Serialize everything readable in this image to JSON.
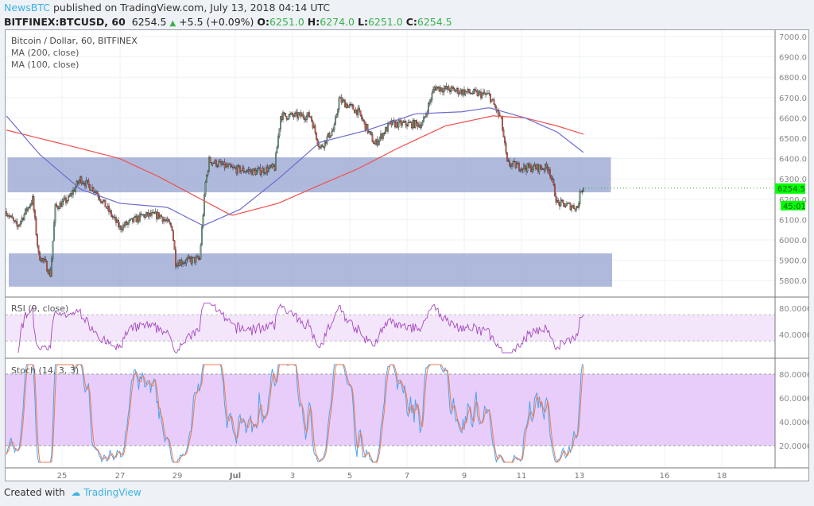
{
  "header": {
    "publisher": "NewsBTC",
    "published_text": "published on TradingView.com, July 13, 2018 04:14 UTC",
    "symbol": "BITFINEX:BTCUSD, 60",
    "last": "6254.5",
    "change": "+5.5 (+0.09%)",
    "o_label": "O:",
    "o": "6251.0",
    "h_label": "H:",
    "h": "6274.0",
    "l_label": "L:",
    "l": "6251.0",
    "c_label": "C:",
    "c": "6254.5"
  },
  "footer": {
    "created_with": "Created with",
    "brand": "TradingView"
  },
  "colors": {
    "up": "#6ba583",
    "down": "#d75442",
    "ma200": "#f0504a",
    "ma100": "#6c6ccf",
    "zone": "#8494c9",
    "rsi": "#a646c0",
    "stoch_k": "#4aa3f0",
    "stoch_d": "#f07a4a",
    "badge": "#00ff00"
  },
  "chart_data": [
    {
      "type": "candlestick",
      "title": "Bitcoin / Dollar, 60, BITFINEX",
      "interval": "60",
      "ylim": [
        5750,
        7020
      ],
      "yticks": [
        "7000.0",
        "6900.0",
        "6800.0",
        "6700.0",
        "6600.0",
        "6500.0",
        "6400.0",
        "6300.0",
        "6200.0",
        "6100.0",
        "6000.0",
        "5900.0",
        "5800.0"
      ],
      "xticks": [
        "25",
        "27",
        "29",
        "Jul",
        "3",
        "5",
        "7",
        "9",
        "11",
        "13",
        "16",
        "18"
      ],
      "last_price_label": "6254.5",
      "countdown_label": "45:01",
      "price_path": [
        [
          "2018-06-23 00:00",
          6140
        ],
        [
          "2018-06-23 09:00",
          6063
        ],
        [
          "2018-06-23 22:00",
          6200
        ],
        [
          "2018-06-24 03:00",
          5925
        ],
        [
          "2018-06-24 08:00",
          5890
        ],
        [
          "2018-06-24 13:00",
          5830
        ],
        [
          "2018-06-24 17:00",
          6160
        ],
        [
          "2018-06-25 04:00",
          6200
        ],
        [
          "2018-06-25 14:00",
          6300
        ],
        [
          "2018-06-26 03:00",
          6240
        ],
        [
          "2018-06-26 23:00",
          6060
        ],
        [
          "2018-06-27 19:00",
          6120
        ],
        [
          "2018-06-28 09:00",
          6120
        ],
        [
          "2018-06-28 19:00",
          6060
        ],
        [
          "2018-06-28 22:00",
          5890
        ],
        [
          "2018-06-29 18:00",
          5905
        ],
        [
          "2018-06-29 23:00",
          6280
        ],
        [
          "2018-06-30 02:00",
          6390
        ],
        [
          "2018-06-30 21:00",
          6350
        ],
        [
          "2018-07-01 17:00",
          6335
        ],
        [
          "2018-07-02 09:00",
          6355
        ],
        [
          "2018-07-02 14:00",
          6610
        ],
        [
          "2018-07-03 15:00",
          6610
        ],
        [
          "2018-07-03 23:00",
          6450
        ],
        [
          "2018-07-04 11:00",
          6550
        ],
        [
          "2018-07-04 15:00",
          6690
        ],
        [
          "2018-07-05 07:00",
          6630
        ],
        [
          "2018-07-05 21:00",
          6470
        ],
        [
          "2018-07-06 10:00",
          6570
        ],
        [
          "2018-07-07 13:00",
          6570
        ],
        [
          "2018-07-07 23:00",
          6750
        ],
        [
          "2018-07-08 22:00",
          6730
        ],
        [
          "2018-07-09 21:00",
          6710
        ],
        [
          "2018-07-10 07:00",
          6590
        ],
        [
          "2018-07-10 12:00",
          6375
        ],
        [
          "2018-07-11 03:00",
          6355
        ],
        [
          "2018-07-11 23:00",
          6355
        ],
        [
          "2018-07-12 06:00",
          6180
        ],
        [
          "2018-07-12 23:00",
          6160
        ],
        [
          "2018-07-13 02:00",
          6250
        ],
        [
          "2018-07-13 04:00",
          6254.5
        ]
      ],
      "series": [
        {
          "name": "MA (200, close)",
          "values": [
            [
              "2018-06-23 00:00",
              6540
            ],
            [
              "2018-06-25 14:00",
              6450
            ],
            [
              "2018-06-26 23:00",
              6400
            ],
            [
              "2018-06-28 08:00",
              6310
            ],
            [
              "2018-06-30 21:00",
              6120
            ],
            [
              "2018-07-02 12:00",
              6180
            ],
            [
              "2018-07-03 23:00",
              6270
            ],
            [
              "2018-07-05 07:00",
              6350
            ],
            [
              "2018-07-06 16:00",
              6450
            ],
            [
              "2018-07-08 08:00",
              6560
            ],
            [
              "2018-07-10 00:00",
              6610
            ],
            [
              "2018-07-11 03:00",
              6600
            ],
            [
              "2018-07-12 06:00",
              6560
            ],
            [
              "2018-07-13 04:00",
              6520
            ]
          ]
        },
        {
          "name": "MA (100, close)",
          "values": [
            [
              "2018-06-23 00:00",
              6610
            ],
            [
              "2018-06-24 04:00",
              6420
            ],
            [
              "2018-06-25 14:00",
              6250
            ],
            [
              "2018-06-26 23:00",
              6180
            ],
            [
              "2018-06-28 15:00",
              6160
            ],
            [
              "2018-06-29 21:00",
              6070
            ],
            [
              "2018-07-01 04:00",
              6150
            ],
            [
              "2018-07-02 12:00",
              6300
            ],
            [
              "2018-07-03 23:00",
              6480
            ],
            [
              "2018-07-05 15:00",
              6540
            ],
            [
              "2018-07-07 07:00",
              6620
            ],
            [
              "2018-07-08 22:00",
              6630
            ],
            [
              "2018-07-09 21:00",
              6650
            ],
            [
              "2018-07-11 03:00",
              6600
            ],
            [
              "2018-07-12 06:00",
              6530
            ],
            [
              "2018-07-13 04:00",
              6430
            ]
          ]
        }
      ],
      "zones": [
        {
          "from": 6234,
          "to": 6406,
          "start": "2018-06-23 01:00",
          "end": "2018-07-14 03:00"
        },
        {
          "from": 5770,
          "to": 5934,
          "start": "2018-06-23 02:00",
          "end": "2018-07-14 04:00"
        }
      ]
    },
    {
      "type": "line",
      "title": "RSI (9, close)",
      "ylim": [
        10,
        90
      ],
      "yticks": [
        "80.0000",
        "40.0000"
      ],
      "bands": [
        30,
        70
      ]
    },
    {
      "type": "line",
      "title": "Stoch (14, 3, 3)",
      "ylim": [
        0,
        88
      ],
      "yticks": [
        "80.0000",
        "60.0000",
        "40.0000",
        "20.0000"
      ],
      "bands": [
        20,
        80
      ]
    }
  ]
}
